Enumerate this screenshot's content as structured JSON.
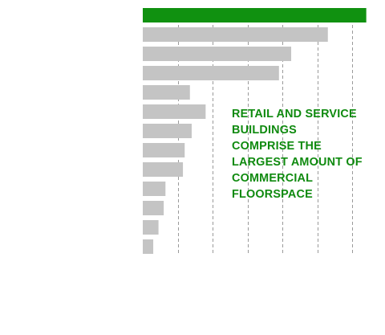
{
  "chart_data": {
    "type": "bar",
    "orientation": "horizontal",
    "values": [
      64,
      53,
      42.5,
      39,
      13.5,
      18,
      14,
      12,
      11.5,
      6.5,
      6,
      4.5,
      3
    ],
    "highlight_index": 0,
    "xlim": [
      0,
      65
    ],
    "grid": true,
    "grid_style": "dashed-vertical",
    "colors": {
      "highlight": "#109110",
      "bar": "#c4c4c4",
      "grid": "#9a9a9a",
      "annotation": "#0f8a0f"
    },
    "annotation": [
      "RETAIL AND SERVICE",
      "BUILDINGS",
      "COMPRISE THE",
      "LARGEST AMOUNT OF",
      "COMMERCIAL",
      "FLOORSPACE"
    ]
  }
}
